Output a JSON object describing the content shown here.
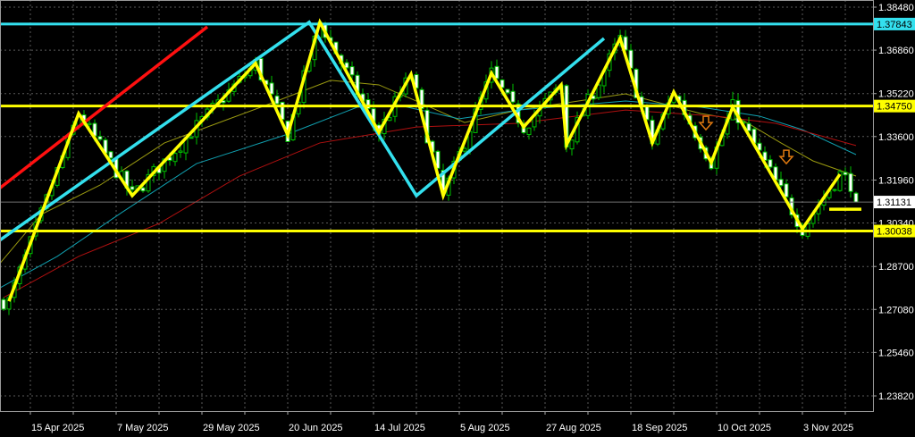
{
  "chart_data": {
    "type": "candlestick",
    "title": "",
    "colors": {
      "background": "#000000",
      "grid": "#5a5a5a",
      "candle": "#00c000",
      "candle_down_body": "#ffffff",
      "zigzag": "#ffff00",
      "channel": "#33e0ee",
      "trendline_red": "#ff1010",
      "ma_fast": "#9a9a10",
      "ma_mid": "#10a0b0",
      "ma_slow": "#b01010",
      "arrow": "#e07a10",
      "axis_text": "#ffffff"
    },
    "y_axis": {
      "position": "right",
      "ticks": [
        "1.38480",
        "1.36860",
        "1.35220",
        "1.33600",
        "1.31960",
        "1.30340",
        "1.28700",
        "1.27080",
        "1.25460",
        "1.23820"
      ],
      "range": [
        1.2345,
        1.3872
      ]
    },
    "x_axis": {
      "ticks": [
        {
          "date": "2025-04-15",
          "label": "15 Apr 2025"
        },
        {
          "date": "2025-05-07",
          "label": "7 May 2025"
        },
        {
          "date": "2025-05-29",
          "label": "29 May 2025"
        },
        {
          "date": "2025-06-20",
          "label": "20 Jun 2025"
        },
        {
          "date": "2025-07-14",
          "label": "14 Jul 2025"
        },
        {
          "date": "2025-08-05",
          "label": "5 Aug 2025"
        },
        {
          "date": "2025-08-27",
          "label": "27 Aug 2025"
        },
        {
          "date": "2025-09-18",
          "label": "18 Sep 2025"
        },
        {
          "date": "2025-10-10",
          "label": "10 Oct 2025"
        },
        {
          "date": "2025-11-03",
          "label": "3 Nov 2025"
        }
      ]
    },
    "grid": true,
    "levels": [
      {
        "price": 1.37843,
        "label": "1.37843",
        "color": "#33e0ee",
        "text_color": "#000000"
      },
      {
        "price": 1.3475,
        "label": "1.34750",
        "color": "#ffff00",
        "text_color": "#000000"
      },
      {
        "price": 1.30038,
        "label": "1.30038",
        "color": "#ffff00",
        "text_color": "#000000"
      }
    ],
    "current_price": {
      "price": 1.31131,
      "label": "1.31131"
    },
    "zigzag": [
      [
        "2025-04-09",
        1.2739
      ],
      [
        "2025-04-28",
        1.3447
      ],
      [
        "2025-05-12",
        1.3137
      ],
      [
        "2025-06-12",
        1.3636
      ],
      [
        "2025-06-20",
        1.3366
      ],
      [
        "2025-06-30",
        1.3791
      ],
      [
        "2025-07-15",
        1.3376
      ],
      [
        "2025-07-23",
        1.3595
      ],
      [
        "2025-07-31",
        1.3137
      ],
      [
        "2025-08-13",
        1.3599
      ],
      [
        "2025-08-21",
        1.3396
      ],
      [
        "2025-09-01",
        1.3555
      ],
      [
        "2025-09-02",
        1.3329
      ],
      [
        "2025-09-16",
        1.373
      ],
      [
        "2025-09-24",
        1.3336
      ],
      [
        "2025-09-30",
        1.3528
      ],
      [
        "2025-10-09",
        1.3262
      ],
      [
        "2025-10-15",
        1.3471
      ],
      [
        "2025-11-03",
        1.3012
      ],
      [
        "2025-11-12",
        1.3218
      ]
    ],
    "support_segment": [
      [
        "2025-11-10",
        1.3086
      ],
      [
        "2025-11-18",
        1.3086
      ]
    ],
    "channel_lines": [
      [
        "2025-04-07",
        1.2965
      ],
      [
        "2025-06-26",
        1.3791
      ],
      [
        "2025-07-24",
        1.3137
      ],
      [
        "2025-09-11",
        1.373
      ]
    ],
    "red_trendline": [
      [
        "2025-04-07",
        1.3161
      ],
      [
        "2025-05-30",
        1.3774
      ]
    ],
    "arrows": [
      [
        "2025-10-08",
        1.3396
      ],
      [
        "2025-10-29",
        1.3268
      ]
    ],
    "moving_averages": [
      {
        "color_key": "ma_fast",
        "points": [
          [
            "2025-04-07",
            1.2874
          ],
          [
            "2025-04-17",
            1.3066
          ],
          [
            "2025-05-02",
            1.3177
          ],
          [
            "2025-05-20",
            1.3336
          ],
          [
            "2025-06-13",
            1.3471
          ],
          [
            "2025-07-02",
            1.3572
          ],
          [
            "2025-07-15",
            1.3555
          ],
          [
            "2025-07-24",
            1.3494
          ],
          [
            "2025-08-06",
            1.3413
          ],
          [
            "2025-08-20",
            1.346
          ],
          [
            "2025-09-17",
            1.3521
          ],
          [
            "2025-10-07",
            1.3447
          ],
          [
            "2025-10-17",
            1.342
          ],
          [
            "2025-10-28",
            1.3336
          ],
          [
            "2025-11-05",
            1.3268
          ],
          [
            "2025-11-17",
            1.3211
          ]
        ]
      },
      {
        "color_key": "ma_mid",
        "points": [
          [
            "2025-04-07",
            1.2786
          ],
          [
            "2025-04-22",
            1.2908
          ],
          [
            "2025-05-08",
            1.3073
          ],
          [
            "2025-05-28",
            1.3258
          ],
          [
            "2025-06-20",
            1.3369
          ],
          [
            "2025-07-09",
            1.3471
          ],
          [
            "2025-07-21",
            1.3477
          ],
          [
            "2025-08-05",
            1.3427
          ],
          [
            "2025-08-20",
            1.346
          ],
          [
            "2025-09-17",
            1.3494
          ],
          [
            "2025-10-07",
            1.3471
          ],
          [
            "2025-10-22",
            1.3437
          ],
          [
            "2025-11-03",
            1.3386
          ],
          [
            "2025-11-17",
            1.3292
          ]
        ]
      },
      {
        "color_key": "ma_slow",
        "points": [
          [
            "2025-04-08",
            1.2753
          ],
          [
            "2025-04-28",
            1.2908
          ],
          [
            "2025-05-19",
            1.3032
          ],
          [
            "2025-06-09",
            1.3211
          ],
          [
            "2025-06-30",
            1.3336
          ],
          [
            "2025-07-24",
            1.3396
          ],
          [
            "2025-08-20",
            1.341
          ],
          [
            "2025-09-17",
            1.346
          ],
          [
            "2025-10-10",
            1.3437
          ],
          [
            "2025-10-27",
            1.341
          ],
          [
            "2025-11-17",
            1.3326
          ]
        ]
      }
    ],
    "candles_range": [
      "2025-04-08",
      "2025-11-17"
    ]
  }
}
